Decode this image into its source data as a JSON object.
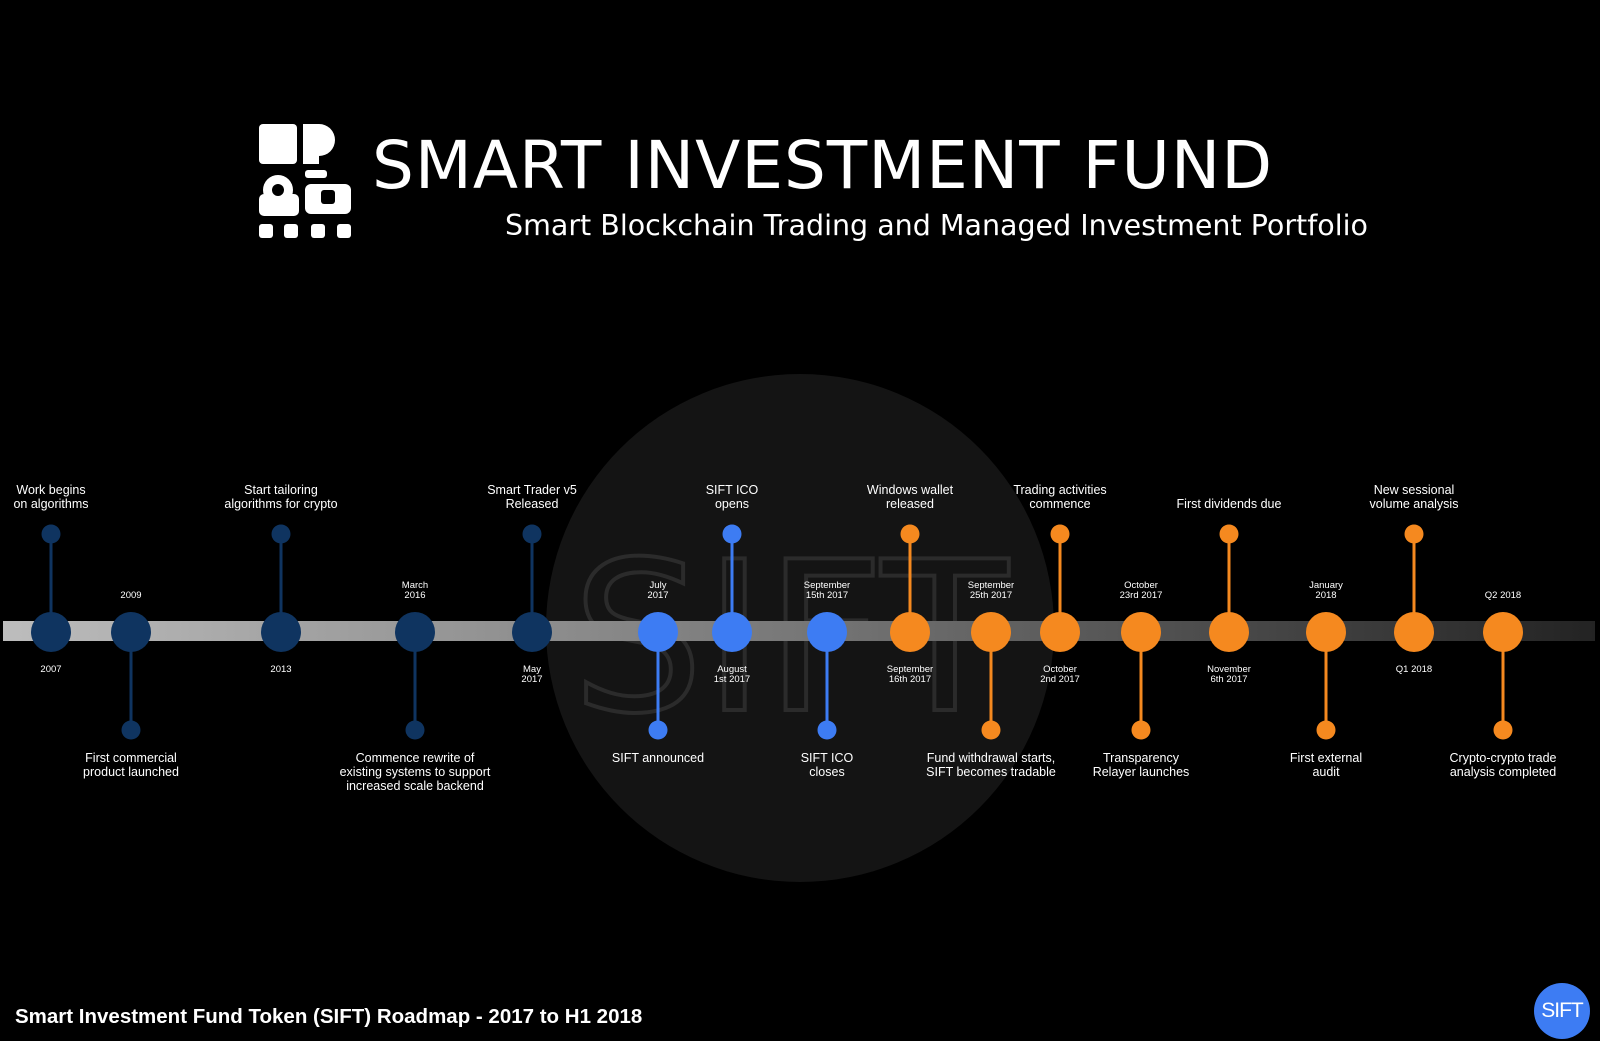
{
  "brand": {
    "title": "SMART INVESTMENT FUND",
    "tagline": "Smart Blockchain Trading and Managed Investment Portfolio"
  },
  "watermark": "SIFT",
  "footer": {
    "title": "Smart Investment Fund Token (SIFT) Roadmap - 2017 to H1 2018",
    "badge": "SIFT"
  },
  "colors": {
    "background": "#000000",
    "past": "#0f3460",
    "ico": "#3d7cf3",
    "future": "#f5891f",
    "watermark_circle": "#141414"
  },
  "milestones": [
    {
      "date": [
        "2007"
      ],
      "event": [
        "Work begins",
        "on algorithms"
      ],
      "event_side": "top",
      "phase": "past"
    },
    {
      "date": [
        "2009"
      ],
      "event": [
        "First commercial",
        "product launched"
      ],
      "event_side": "bottom",
      "phase": "past"
    },
    {
      "date": [
        "2013"
      ],
      "event": [
        "Start tailoring",
        "algorithms for crypto"
      ],
      "event_side": "top",
      "phase": "past"
    },
    {
      "date": [
        "March",
        "2016"
      ],
      "event": [
        "Commence rewrite of",
        "existing systems to support",
        "increased scale backend"
      ],
      "event_side": "bottom",
      "phase": "past"
    },
    {
      "date": [
        "May",
        "2017"
      ],
      "event": [
        "Smart Trader v5",
        "Released"
      ],
      "event_side": "top",
      "phase": "past"
    },
    {
      "date": [
        "July",
        "2017"
      ],
      "event": [
        "SIFT announced"
      ],
      "event_side": "bottom",
      "phase": "ico"
    },
    {
      "date": [
        "August",
        "1st 2017"
      ],
      "event": [
        "SIFT ICO",
        "opens"
      ],
      "event_side": "top",
      "phase": "ico"
    },
    {
      "date": [
        "September",
        "15th 2017"
      ],
      "event": [
        "SIFT ICO",
        "closes"
      ],
      "event_side": "bottom",
      "phase": "ico"
    },
    {
      "date": [
        "September",
        "16th 2017"
      ],
      "event": [
        "Windows wallet",
        "released"
      ],
      "event_side": "top",
      "phase": "future"
    },
    {
      "date": [
        "September",
        "25th 2017"
      ],
      "event": [
        "Fund withdrawal starts,",
        "SIFT becomes tradable"
      ],
      "event_side": "bottom",
      "phase": "future"
    },
    {
      "date": [
        "October",
        "2nd 2017"
      ],
      "event": [
        "Trading activities",
        "commence"
      ],
      "event_side": "top",
      "phase": "future"
    },
    {
      "date": [
        "October",
        "23rd 2017"
      ],
      "event": [
        "Transparency",
        "Relayer launches"
      ],
      "event_side": "bottom",
      "phase": "future"
    },
    {
      "date": [
        "November",
        "6th 2017"
      ],
      "event": [
        "First dividends due"
      ],
      "event_side": "top",
      "phase": "future"
    },
    {
      "date": [
        "January",
        "2018"
      ],
      "event": [
        "First external",
        "audit"
      ],
      "event_side": "bottom",
      "phase": "future"
    },
    {
      "date": [
        "Q1 2018"
      ],
      "event": [
        "New sessional",
        "volume analysis"
      ],
      "event_side": "top",
      "phase": "future"
    },
    {
      "date": [
        "Q2 2018"
      ],
      "event": [
        "Crypto-crypto trade",
        "analysis completed"
      ],
      "event_side": "bottom",
      "phase": "future"
    }
  ]
}
